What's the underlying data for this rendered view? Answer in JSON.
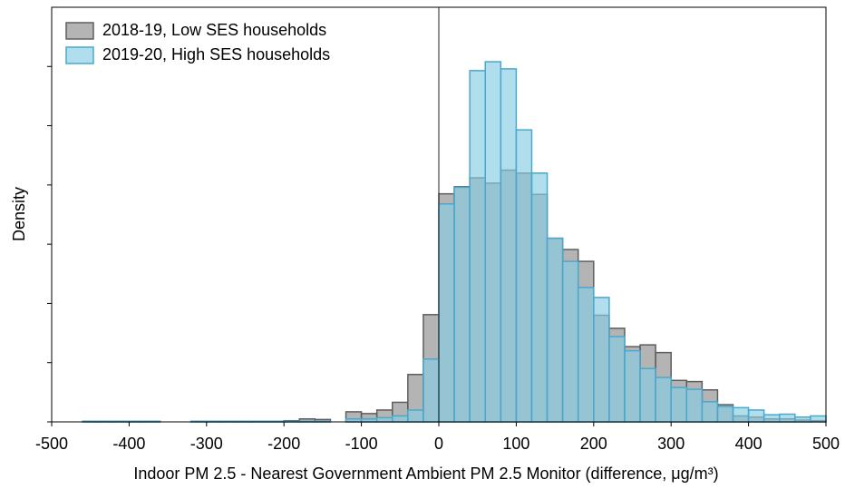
{
  "chart_data": {
    "type": "histogram",
    "xlabel": "Indoor PM 2.5 - Nearest Government Ambient PM 2.5 Monitor (difference, μg/m³)",
    "ylabel": "Density",
    "bins": [
      -500,
      -480,
      -460,
      -440,
      -420,
      -400,
      -380,
      -360,
      -340,
      -320,
      -300,
      -280,
      -260,
      -240,
      -220,
      -200,
      -180,
      -160,
      -140,
      -120,
      -100,
      -80,
      -60,
      -40,
      -20,
      0,
      20,
      40,
      60,
      80,
      100,
      120,
      140,
      160,
      180,
      200,
      220,
      240,
      260,
      280,
      300,
      320,
      340,
      360,
      380,
      400,
      420,
      440,
      460,
      480,
      500
    ],
    "series": [
      {
        "name": "2018-19, Low SES households",
        "color": "#8c8c8c",
        "edgecolor": "#5e5e5e",
        "values": [
          0,
          0,
          0.01,
          0.01,
          0.01,
          0.01,
          0.01,
          0,
          0,
          0.01,
          0.01,
          0.01,
          0.01,
          0.01,
          0.01,
          0.02,
          0.05,
          0.04,
          0,
          0.17,
          0.14,
          0.2,
          0.33,
          0.8,
          1.81,
          3.85,
          3.97,
          4.12,
          4.03,
          4.25,
          4.2,
          3.84,
          3.1,
          2.91,
          2.71,
          1.8,
          1.58,
          1.27,
          1.3,
          1.17,
          0.7,
          0.68,
          0.54,
          0.29,
          0.1,
          0.08,
          0.05,
          0.05,
          0.03,
          0.02
        ]
      },
      {
        "name": "2019-20, High SES households",
        "color": "#87cde4",
        "edgecolor": "#4aa8cc",
        "values": [
          0,
          0,
          0.01,
          0.01,
          0.01,
          0.01,
          0.01,
          0,
          0,
          0.01,
          0.01,
          0.01,
          0.01,
          0.01,
          0.01,
          0.01,
          0.01,
          0.01,
          0,
          0.05,
          0.05,
          0.07,
          0.1,
          0.2,
          1.06,
          3.68,
          3.96,
          5.93,
          6.08,
          5.96,
          4.93,
          4.2,
          3.1,
          2.71,
          2.27,
          2.1,
          1.44,
          1.2,
          0.9,
          0.75,
          0.58,
          0.55,
          0.34,
          0.26,
          0.24,
          0.2,
          0.12,
          0.13,
          0.08,
          0.1
        ]
      }
    ],
    "xlim": [
      -500,
      500
    ],
    "xticks": [
      -500,
      -400,
      -300,
      -200,
      -100,
      0,
      100,
      200,
      300,
      400,
      500
    ],
    "ylim": [
      0,
      7
    ],
    "yticks": [
      0,
      1,
      2,
      3,
      4,
      5,
      6
    ],
    "vline": 0,
    "legend": "upper left"
  }
}
